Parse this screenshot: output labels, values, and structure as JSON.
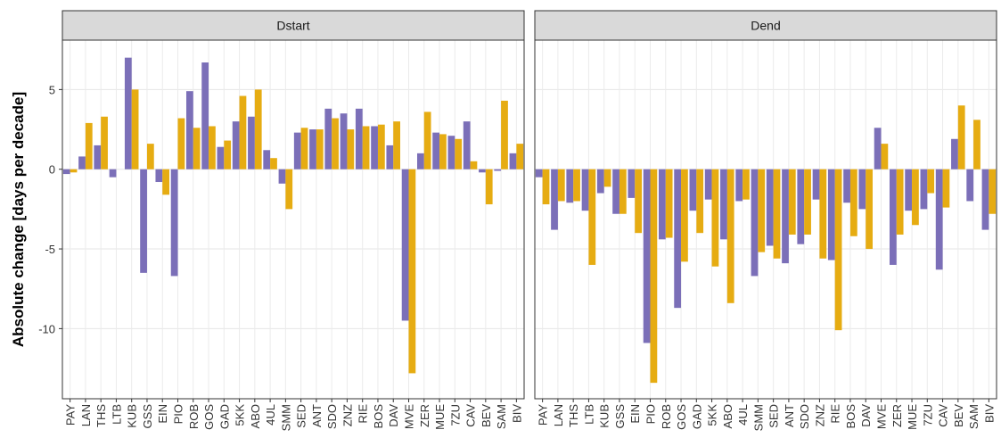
{
  "chart_data": [
    {
      "type": "bar",
      "title": "Dstart",
      "ylabel": "Absolute change [days per decade]",
      "categories": [
        "PAY",
        "LAN",
        "THS",
        "LTB",
        "KUB",
        "GSS",
        "EIN",
        "PIO",
        "ROB",
        "GOS",
        "GAD",
        "5KK",
        "ABO",
        "4UL",
        "SMM",
        "SED",
        "ANT",
        "SDO",
        "ZNZ",
        "RIE",
        "BOS",
        "DAV",
        "MVE",
        "ZER",
        "MUE",
        "7ZU",
        "CAV",
        "BEV",
        "SAM",
        "BIV"
      ],
      "series": [
        {
          "color": "#7b6fb8",
          "values": [
            -0.3,
            0.8,
            1.5,
            -0.5,
            7.0,
            -6.5,
            -0.8,
            -6.7,
            4.9,
            6.7,
            1.4,
            3.0,
            3.3,
            1.2,
            -0.9,
            2.3,
            2.5,
            3.8,
            3.5,
            3.8,
            2.7,
            1.5,
            -9.5,
            1.0,
            2.3,
            2.1,
            3.0,
            -0.2,
            -0.1,
            1.0
          ]
        },
        {
          "color": "#e6ac12",
          "values": [
            -0.2,
            2.9,
            3.3,
            0,
            5.0,
            1.6,
            -1.6,
            3.2,
            2.6,
            2.7,
            1.8,
            4.6,
            5.0,
            0.7,
            -2.5,
            2.6,
            2.5,
            3.2,
            2.5,
            2.7,
            2.8,
            3.0,
            -12.8,
            3.6,
            2.2,
            1.9,
            0.5,
            -2.2,
            4.3,
            1.6
          ]
        }
      ],
      "ylim": [
        -14.4,
        8.1
      ],
      "yticks": [
        -10,
        -5,
        0,
        5
      ],
      "grid": true
    },
    {
      "type": "bar",
      "title": "Dend",
      "categories": [
        "PAY",
        "LAN",
        "THS",
        "LTB",
        "KUB",
        "GSS",
        "EIN",
        "PIO",
        "ROB",
        "GOS",
        "GAD",
        "5KK",
        "ABO",
        "4UL",
        "SMM",
        "SED",
        "ANT",
        "SDO",
        "ZNZ",
        "RIE",
        "BOS",
        "DAV",
        "MVE",
        "ZER",
        "MUE",
        "7ZU",
        "CAV",
        "BEV",
        "SAM",
        "BIV"
      ],
      "series": [
        {
          "color": "#7b6fb8",
          "values": [
            -0.5,
            -3.8,
            -2.1,
            -2.6,
            -1.5,
            -2.8,
            -1.8,
            -10.9,
            -4.4,
            -8.7,
            -2.6,
            -1.9,
            -4.4,
            -2.0,
            -6.7,
            -4.8,
            -5.9,
            -4.7,
            -1.9,
            -5.7,
            -2.1,
            -2.5,
            2.6,
            -6.0,
            -2.6,
            -2.5,
            -6.3,
            1.9,
            -2.0,
            -3.8
          ]
        },
        {
          "color": "#e6ac12",
          "values": [
            -2.2,
            -2.0,
            -2.0,
            -6.0,
            -1.1,
            -2.8,
            -4.0,
            -13.4,
            -4.3,
            -5.8,
            -4.0,
            -6.1,
            -8.4,
            -1.9,
            -5.2,
            -5.6,
            -4.1,
            -4.1,
            -5.6,
            -10.1,
            -4.2,
            -5.0,
            1.6,
            -4.1,
            -3.5,
            -1.5,
            -2.4,
            4.0,
            3.1,
            -2.8
          ]
        }
      ],
      "ylim": [
        -14.4,
        8.1
      ],
      "yticks": [
        -10,
        -5,
        0,
        5
      ],
      "grid": true
    }
  ]
}
